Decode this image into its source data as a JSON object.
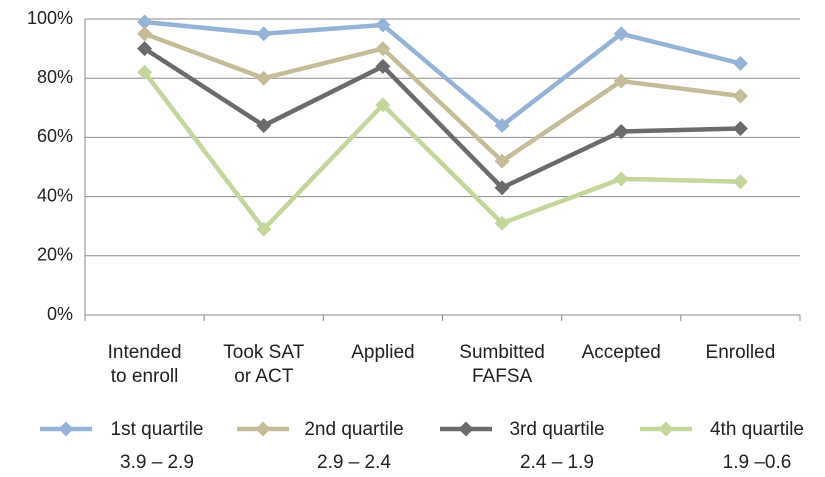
{
  "chart_data": {
    "type": "line",
    "categories": [
      "Intended\nto enroll",
      "Took SAT\nor ACT",
      "Applied",
      "Sumbitted\nFAFSA",
      "Accepted",
      "Enrolled"
    ],
    "series": [
      {
        "name": "1st quartile\n3.9 – 2.9",
        "color": "#95b3d7",
        "values": [
          99,
          95,
          98,
          64,
          95,
          85
        ]
      },
      {
        "name": "2nd quartile\n2.9 – 2.4",
        "color": "#c4bd97",
        "values": [
          95,
          80,
          90,
          52,
          79,
          74
        ]
      },
      {
        "name": "3rd quartile\n2.4 – 1.9",
        "color": "#6b6b6b",
        "values": [
          90,
          64,
          84,
          43,
          62,
          63
        ]
      },
      {
        "name": "4th quartile\n1.9 –0.6",
        "color": "#c3d69b",
        "values": [
          82,
          29,
          71,
          31,
          46,
          45
        ]
      }
    ],
    "ylim": [
      0,
      100
    ],
    "yticks": [
      {
        "value": 0,
        "label": "0%"
      },
      {
        "value": 20,
        "label": "20%"
      },
      {
        "value": 40,
        "label": "40%"
      },
      {
        "value": 60,
        "label": "60%"
      },
      {
        "value": 80,
        "label": "80%"
      },
      {
        "value": 100,
        "label": "100%"
      }
    ],
    "grid": true,
    "legend": "bottom"
  }
}
